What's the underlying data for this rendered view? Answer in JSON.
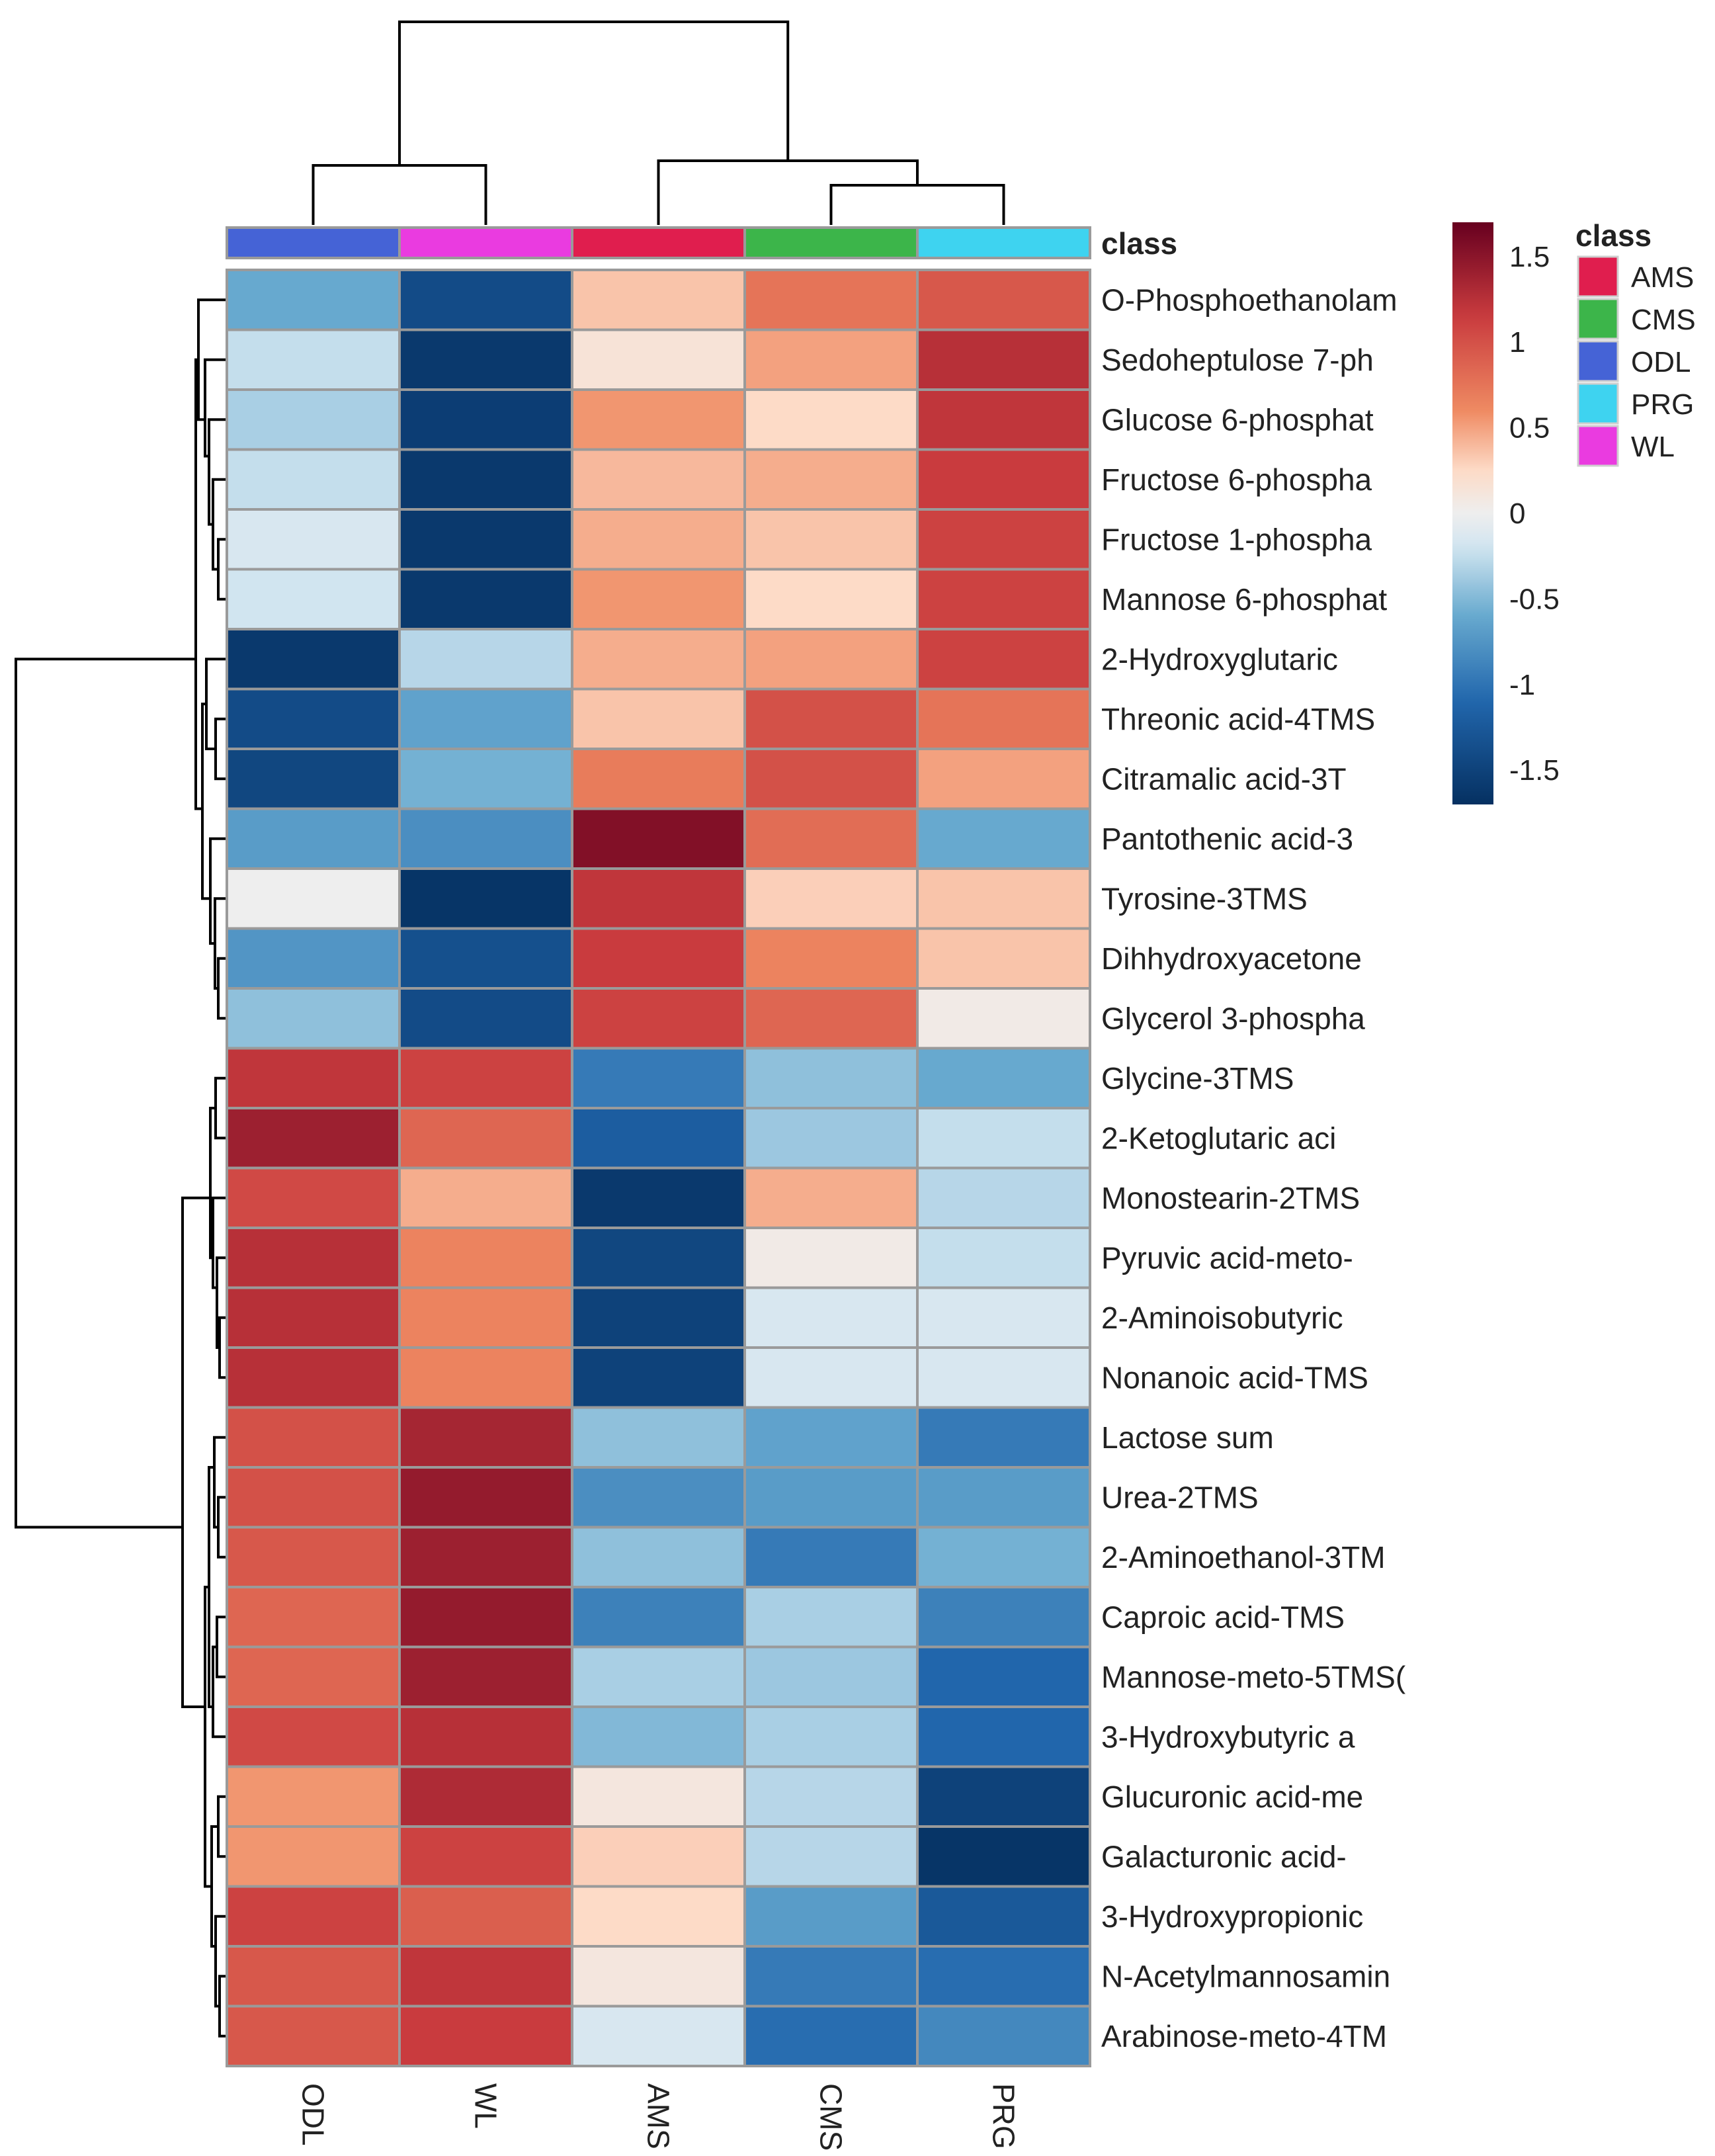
{
  "chart_data": {
    "type": "heatmap",
    "title": "",
    "columns": [
      "ODL",
      "WL",
      "AMS",
      "CMS",
      "PRG"
    ],
    "column_classes": [
      "ODL",
      "WL",
      "AMS",
      "CMS",
      "PRG"
    ],
    "annotation_label": "class",
    "rows": [
      "O-Phosphoethanolam",
      "Sedoheptulose 7-ph",
      "Glucose 6-phosphat",
      "Fructose 6-phospha",
      "Fructose 1-phospha",
      "Mannose 6-phosphat",
      "2-Hydroxyglutaric",
      "Threonic acid-4TMS",
      "Citramalic acid-3T",
      "Pantothenic acid-3",
      "Tyrosine-3TMS",
      "Dihhydroxyacetone",
      "Glycerol 3-phospha",
      "Glycine-3TMS",
      "2-Ketoglutaric aci",
      "Monostearin-2TMS",
      "Pyruvic acid-meto-",
      "2-Aminoisobutyric",
      "Nonanoic acid-TMS",
      "Lactose sum",
      "Urea-2TMS",
      "2-Aminoethanol-3TM",
      "Caproic acid-TMS",
      "Mannose-meto-5TMS(",
      "3-Hydroxybutyric a",
      "Glucuronic acid-me",
      "Galacturonic acid-",
      "3-Hydroxypropionic",
      "N-Acetylmannosamin",
      "Arabinose-meto-4TM"
    ],
    "values": [
      [
        -0.6,
        -1.4,
        0.35,
        0.75,
        0.95
      ],
      [
        -0.25,
        -1.6,
        0.15,
        0.5,
        1.25
      ],
      [
        -0.35,
        -1.55,
        0.55,
        0.25,
        1.2
      ],
      [
        -0.25,
        -1.6,
        0.4,
        0.45,
        1.15
      ],
      [
        -0.15,
        -1.6,
        0.45,
        0.35,
        1.1
      ],
      [
        -0.2,
        -1.6,
        0.55,
        0.25,
        1.1
      ],
      [
        -1.6,
        -0.3,
        0.45,
        0.5,
        1.1
      ],
      [
        -1.4,
        -0.65,
        0.35,
        1.0,
        0.75
      ],
      [
        -1.45,
        -0.55,
        0.7,
        1.0,
        0.5
      ],
      [
        -0.7,
        -0.8,
        1.55,
        0.8,
        -0.6
      ],
      [
        0.0,
        -1.65,
        1.2,
        0.3,
        0.35
      ],
      [
        -0.75,
        -1.35,
        1.15,
        0.65,
        0.35
      ],
      [
        -0.45,
        -1.4,
        1.1,
        0.85,
        0.05
      ],
      [
        1.2,
        1.1,
        -0.95,
        -0.45,
        -0.6
      ],
      [
        1.4,
        0.85,
        -1.2,
        -0.4,
        -0.25
      ],
      [
        1.05,
        0.45,
        -1.6,
        0.45,
        -0.3
      ],
      [
        1.25,
        0.65,
        -1.45,
        0.05,
        -0.25
      ],
      [
        1.25,
        0.65,
        -1.5,
        -0.15,
        -0.15
      ],
      [
        1.25,
        0.65,
        -1.5,
        -0.15,
        -0.15
      ],
      [
        1.0,
        1.35,
        -0.45,
        -0.65,
        -0.95
      ],
      [
        1.0,
        1.45,
        -0.8,
        -0.7,
        -0.7
      ],
      [
        0.95,
        1.4,
        -0.45,
        -0.95,
        -0.55
      ],
      [
        0.85,
        1.45,
        -0.9,
        -0.35,
        -0.9
      ],
      [
        0.85,
        1.4,
        -0.35,
        -0.4,
        -1.1
      ],
      [
        1.05,
        1.25,
        -0.5,
        -0.35,
        -1.1
      ],
      [
        0.55,
        1.3,
        0.1,
        -0.3,
        -1.5
      ],
      [
        0.55,
        1.1,
        0.3,
        -0.3,
        -1.65
      ],
      [
        1.1,
        0.9,
        0.25,
        -0.7,
        -1.25
      ],
      [
        0.95,
        1.2,
        0.1,
        -0.95,
        -1.05
      ],
      [
        0.95,
        1.15,
        -0.15,
        -1.05,
        -0.85
      ]
    ],
    "color_scale": {
      "min": -1.7,
      "max": 1.7,
      "stops": [
        {
          "v": -1.7,
          "c": "#053061"
        },
        {
          "v": -1.1,
          "c": "#2166ac"
        },
        {
          "v": -0.6,
          "c": "#67a9cf"
        },
        {
          "v": -0.2,
          "c": "#d1e5f0"
        },
        {
          "v": 0.0,
          "c": "#eeeeee"
        },
        {
          "v": 0.25,
          "c": "#fddbc7"
        },
        {
          "v": 0.6,
          "c": "#ef8a62"
        },
        {
          "v": 1.15,
          "c": "#c93b3e"
        },
        {
          "v": 1.7,
          "c": "#67001f"
        }
      ]
    },
    "legend": {
      "ticks": [
        1.5,
        1,
        0.5,
        0,
        -0.5,
        -1,
        -1.5
      ],
      "tick_labels": [
        "1.5",
        "1",
        "0.5",
        "0",
        "-0.5",
        "-1",
        "-1.5"
      ]
    },
    "class_legend": {
      "title": "class",
      "items": [
        {
          "name": "AMS",
          "color": "#e01e4e"
        },
        {
          "name": "CMS",
          "color": "#3cb54a"
        },
        {
          "name": "ODL",
          "color": "#4563d6"
        },
        {
          "name": "PRG",
          "color": "#3ed3f0"
        },
        {
          "name": "WL",
          "color": "#ea3be0"
        }
      ]
    }
  }
}
